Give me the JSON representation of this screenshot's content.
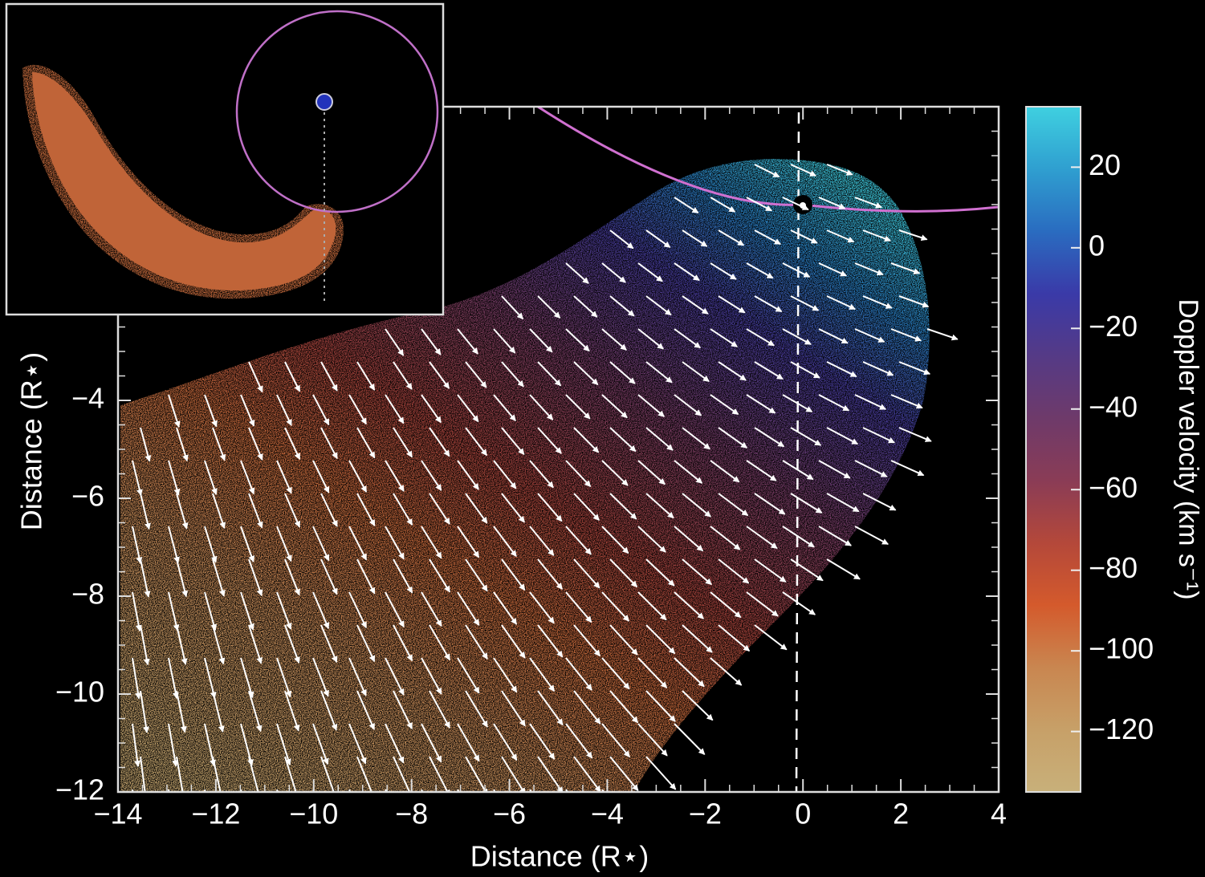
{
  "chart_data": {
    "type": "vector-field",
    "x_label": "Distance (R⋆)",
    "y_label": "Distance (R⋆)",
    "xlim": [
      -14,
      4
    ],
    "ylim": [
      -12,
      2
    ],
    "xticks": [
      {
        "value": -14,
        "label": "−14"
      },
      {
        "value": -12,
        "label": "−12"
      },
      {
        "value": -10,
        "label": "−10"
      },
      {
        "value": -8,
        "label": "−8"
      },
      {
        "value": -6,
        "label": "−6"
      },
      {
        "value": -4,
        "label": "−4"
      },
      {
        "value": -2,
        "label": "−2"
      },
      0,
      2,
      4
    ],
    "yticks": [
      {
        "value": -12,
        "label": "−12"
      },
      {
        "value": -10,
        "label": "−10"
      },
      {
        "value": -8,
        "label": "−8"
      },
      {
        "value": -6,
        "label": "−6"
      },
      {
        "value": -4,
        "label": "−4"
      }
    ],
    "colorbar": {
      "label": "Doppler velocity (km s⁻¹)",
      "clim": [
        -135,
        35
      ],
      "ticks": [
        {
          "value": 20,
          "label": "20"
        },
        0,
        {
          "value": -20,
          "label": "−20"
        },
        {
          "value": -40,
          "label": "−40"
        },
        {
          "value": -60,
          "label": "−60"
        },
        {
          "value": -80,
          "label": "−80"
        },
        {
          "value": -100,
          "label": "−100"
        },
        {
          "value": -120,
          "label": "−120"
        }
      ],
      "colors": [
        "#3fd0e0",
        "#2f9fd0",
        "#2a6cc0",
        "#3a3aa8",
        "#553a86",
        "#6e3a6a",
        "#8a3c56",
        "#b4483a",
        "#d45a2c",
        "#c98650",
        "#c7a068",
        "#c8b07a"
      ]
    }
  }
}
